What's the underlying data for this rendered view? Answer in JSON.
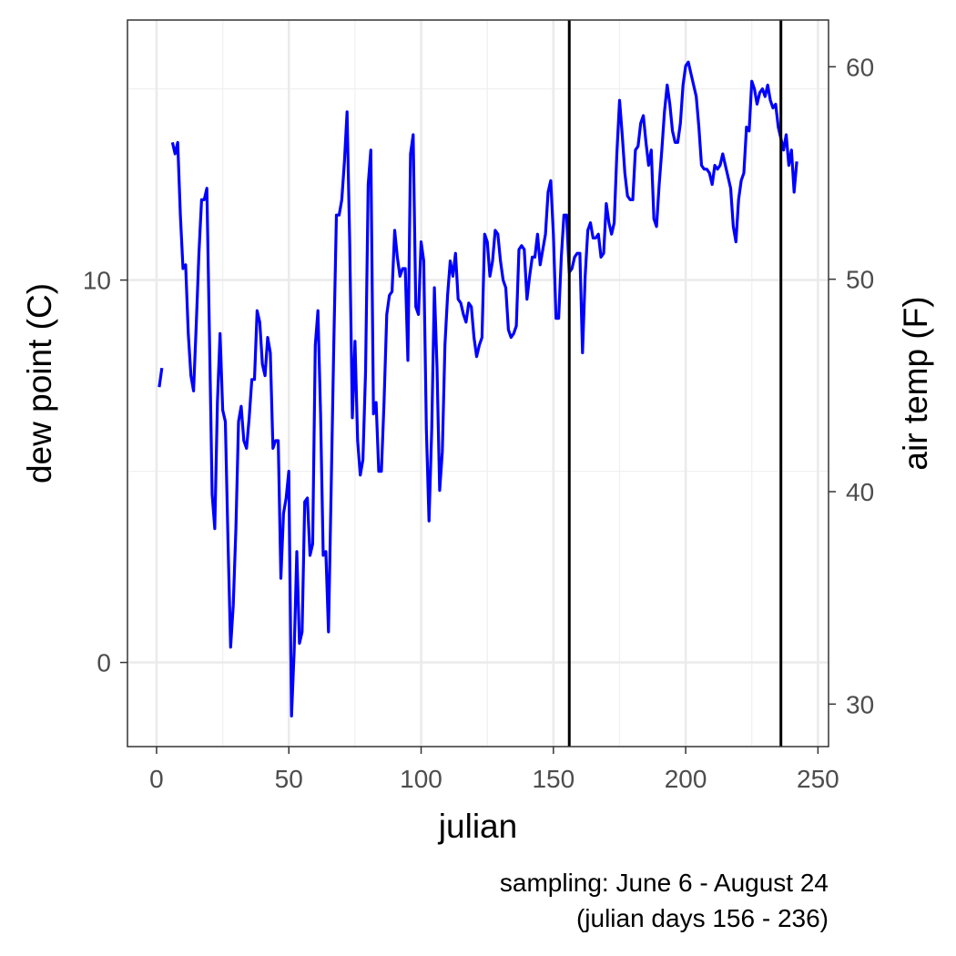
{
  "chart_data": {
    "type": "line",
    "title": "",
    "xlabel": "julian",
    "ylabel": "dew point (C)",
    "ylabel_right": "air temp (F)",
    "caption_lines": [
      "sampling: June 6 - August 24",
      "(julian days 156 - 236)"
    ],
    "xlim": [
      -11,
      254
    ],
    "ylim": [
      -2.2,
      16.8
    ],
    "ylim_right": [
      28.0,
      62.2
    ],
    "x_ticks": [
      0,
      50,
      100,
      150,
      200,
      250
    ],
    "x_tick_labels": [
      "0",
      "50",
      "100",
      "150",
      "200",
      "250"
    ],
    "y_ticks": [
      0,
      10
    ],
    "y_tick_labels": [
      "0",
      "10"
    ],
    "y_right_ticks": [
      30,
      40,
      50,
      60
    ],
    "y_right_tick_labels": [
      "30",
      "40",
      "50",
      "60"
    ],
    "grid": true,
    "line_color": "#0000ff",
    "vline_color": "#000000",
    "vlines": [
      156,
      236
    ],
    "series": [
      {
        "segments": [
          [
            [
              1,
              7.2
            ],
            [
              2,
              7.7
            ]
          ],
          [
            [
              6,
              13.6
            ],
            [
              7,
              13.3
            ],
            [
              8,
              13.6
            ],
            [
              9,
              11.7
            ],
            [
              10,
              10.3
            ],
            [
              11,
              10.4
            ],
            [
              12,
              8.6
            ],
            [
              13,
              7.5
            ],
            [
              14,
              7.1
            ],
            [
              15,
              8.8
            ],
            [
              16,
              10.7
            ],
            [
              17,
              12.1
            ],
            [
              18,
              12.1
            ],
            [
              19,
              12.4
            ],
            [
              20,
              8.5
            ],
            [
              21,
              4.4
            ],
            [
              22,
              3.5
            ],
            [
              23,
              6.8
            ],
            [
              24,
              8.6
            ],
            [
              25,
              6.6
            ],
            [
              26,
              6.3
            ],
            [
              27,
              3.2
            ],
            [
              28,
              0.4
            ],
            [
              29,
              1.5
            ],
            [
              30,
              3.5
            ],
            [
              31,
              6.3
            ],
            [
              32,
              6.7
            ],
            [
              33,
              5.8
            ],
            [
              34,
              5.6
            ],
            [
              35,
              6.4
            ],
            [
              36,
              7.4
            ],
            [
              37,
              7.4
            ],
            [
              38,
              9.2
            ],
            [
              39,
              8.9
            ],
            [
              40,
              7.8
            ],
            [
              41,
              7.5
            ],
            [
              42,
              8.5
            ],
            [
              43,
              8.1
            ],
            [
              44,
              5.6
            ],
            [
              45,
              5.8
            ],
            [
              46,
              5.8
            ],
            [
              47,
              2.2
            ],
            [
              48,
              3.9
            ],
            [
              49,
              4.3
            ],
            [
              50,
              5.0
            ],
            [
              51,
              -1.4
            ],
            [
              52,
              0.3
            ],
            [
              53,
              2.9
            ],
            [
              54,
              0.5
            ],
            [
              55,
              0.8
            ],
            [
              56,
              4.2
            ],
            [
              57,
              4.3
            ],
            [
              58,
              2.8
            ],
            [
              59,
              3.1
            ],
            [
              60,
              8.3
            ],
            [
              61,
              9.2
            ],
            [
              62,
              6.5
            ],
            [
              63,
              2.8
            ],
            [
              64,
              2.9
            ],
            [
              65,
              0.8
            ],
            [
              66,
              4.5
            ],
            [
              67,
              8.3
            ],
            [
              68,
              11.7
            ],
            [
              69,
              11.7
            ],
            [
              70,
              12.1
            ],
            [
              71,
              13.1
            ],
            [
              72,
              14.4
            ],
            [
              73,
              11.0
            ],
            [
              74,
              6.4
            ],
            [
              75,
              8.4
            ],
            [
              76,
              5.8
            ],
            [
              77,
              4.9
            ],
            [
              78,
              5.3
            ],
            [
              79,
              7.6
            ],
            [
              80,
              12.5
            ],
            [
              81,
              13.4
            ],
            [
              82,
              6.5
            ],
            [
              83,
              6.8
            ],
            [
              84,
              5.0
            ],
            [
              85,
              5.0
            ],
            [
              86,
              6.8
            ],
            [
              87,
              9.1
            ],
            [
              88,
              9.6
            ],
            [
              89,
              9.7
            ],
            [
              90,
              11.3
            ],
            [
              91,
              10.6
            ],
            [
              92,
              10.1
            ],
            [
              93,
              10.3
            ],
            [
              94,
              10.3
            ],
            [
              95,
              7.9
            ],
            [
              96,
              13.3
            ],
            [
              97,
              13.8
            ],
            [
              98,
              9.3
            ],
            [
              99,
              9.1
            ],
            [
              100,
              11.0
            ],
            [
              101,
              10.5
            ],
            [
              102,
              6.1
            ],
            [
              103,
              3.7
            ],
            [
              104,
              6.1
            ],
            [
              105,
              9.8
            ],
            [
              106,
              7.7
            ],
            [
              107,
              4.5
            ],
            [
              108,
              5.5
            ],
            [
              109,
              8.3
            ],
            [
              110,
              9.6
            ],
            [
              111,
              10.5
            ],
            [
              112,
              10.1
            ],
            [
              113,
              10.7
            ],
            [
              114,
              9.5
            ],
            [
              115,
              9.4
            ],
            [
              116,
              9.1
            ],
            [
              117,
              8.9
            ],
            [
              118,
              9.4
            ],
            [
              119,
              9.3
            ],
            [
              120,
              8.5
            ],
            [
              121,
              8.0
            ],
            [
              122,
              8.3
            ],
            [
              123,
              8.5
            ],
            [
              124,
              11.2
            ],
            [
              125,
              11.0
            ],
            [
              126,
              10.1
            ],
            [
              127,
              10.5
            ],
            [
              128,
              11.3
            ],
            [
              129,
              11.2
            ],
            [
              130,
              10.5
            ],
            [
              131,
              10.0
            ],
            [
              132,
              9.8
            ],
            [
              133,
              8.7
            ],
            [
              134,
              8.5
            ],
            [
              135,
              8.6
            ],
            [
              136,
              8.8
            ],
            [
              137,
              10.8
            ],
            [
              138,
              10.9
            ],
            [
              139,
              10.8
            ],
            [
              140,
              9.5
            ],
            [
              141,
              10.1
            ],
            [
              142,
              10.6
            ],
            [
              143,
              10.6
            ],
            [
              144,
              11.2
            ],
            [
              145,
              10.4
            ],
            [
              146,
              10.8
            ],
            [
              147,
              11.2
            ],
            [
              148,
              12.3
            ],
            [
              149,
              12.6
            ],
            [
              150,
              11.2
            ],
            [
              151,
              9.0
            ],
            [
              152,
              9.0
            ],
            [
              153,
              10.6
            ],
            [
              154,
              11.7
            ],
            [
              155,
              11.7
            ],
            [
              156,
              10.2
            ],
            [
              157,
              10.3
            ],
            [
              158,
              10.6
            ],
            [
              159,
              10.7
            ],
            [
              160,
              10.7
            ],
            [
              161,
              8.1
            ],
            [
              162,
              10.1
            ],
            [
              163,
              11.3
            ],
            [
              164,
              11.5
            ],
            [
              165,
              11.1
            ],
            [
              166,
              11.1
            ],
            [
              167,
              11.2
            ],
            [
              168,
              10.6
            ],
            [
              169,
              10.7
            ],
            [
              170,
              12.0
            ],
            [
              171,
              11.5
            ],
            [
              172,
              11.2
            ],
            [
              173,
              11.5
            ],
            [
              174,
              13.3
            ],
            [
              175,
              14.7
            ],
            [
              176,
              13.8
            ],
            [
              177,
              12.8
            ],
            [
              178,
              12.2
            ],
            [
              179,
              12.1
            ],
            [
              180,
              12.1
            ],
            [
              181,
              13.4
            ],
            [
              182,
              13.5
            ],
            [
              183,
              14.1
            ],
            [
              184,
              14.3
            ],
            [
              185,
              13.6
            ],
            [
              186,
              13.0
            ],
            [
              187,
              13.4
            ],
            [
              188,
              11.6
            ],
            [
              189,
              11.4
            ],
            [
              190,
              12.5
            ],
            [
              191,
              13.4
            ],
            [
              192,
              14.4
            ],
            [
              193,
              15.1
            ],
            [
              194,
              14.6
            ],
            [
              195,
              13.9
            ],
            [
              196,
              13.6
            ],
            [
              197,
              13.6
            ],
            [
              198,
              14.1
            ],
            [
              199,
              15.1
            ],
            [
              200,
              15.6
            ],
            [
              201,
              15.7
            ],
            [
              202,
              15.4
            ],
            [
              203,
              15.1
            ],
            [
              204,
              14.8
            ],
            [
              205,
              14.0
            ],
            [
              206,
              13.0
            ],
            [
              207,
              12.9
            ],
            [
              208,
              12.9
            ],
            [
              209,
              12.8
            ],
            [
              210,
              12.5
            ],
            [
              211,
              13.0
            ],
            [
              212,
              12.9
            ],
            [
              213,
              13.0
            ],
            [
              214,
              13.3
            ],
            [
              215,
              13.0
            ],
            [
              216,
              12.7
            ],
            [
              217,
              12.4
            ],
            [
              218,
              11.4
            ],
            [
              219,
              11.0
            ],
            [
              220,
              12.1
            ],
            [
              221,
              12.6
            ],
            [
              222,
              12.8
            ],
            [
              223,
              14.0
            ],
            [
              224,
              13.9
            ],
            [
              225,
              15.2
            ],
            [
              226,
              15.0
            ],
            [
              227,
              14.6
            ],
            [
              228,
              14.9
            ],
            [
              229,
              15.0
            ],
            [
              230,
              14.8
            ],
            [
              231,
              15.1
            ],
            [
              232,
              14.7
            ],
            [
              233,
              14.5
            ],
            [
              234,
              14.6
            ],
            [
              235,
              14.0
            ],
            [
              236,
              13.7
            ],
            [
              237,
              13.4
            ],
            [
              238,
              13.8
            ],
            [
              239,
              13.0
            ],
            [
              240,
              13.4
            ],
            [
              241,
              12.3
            ],
            [
              242,
              13.1
            ]
          ]
        ]
      }
    ]
  }
}
